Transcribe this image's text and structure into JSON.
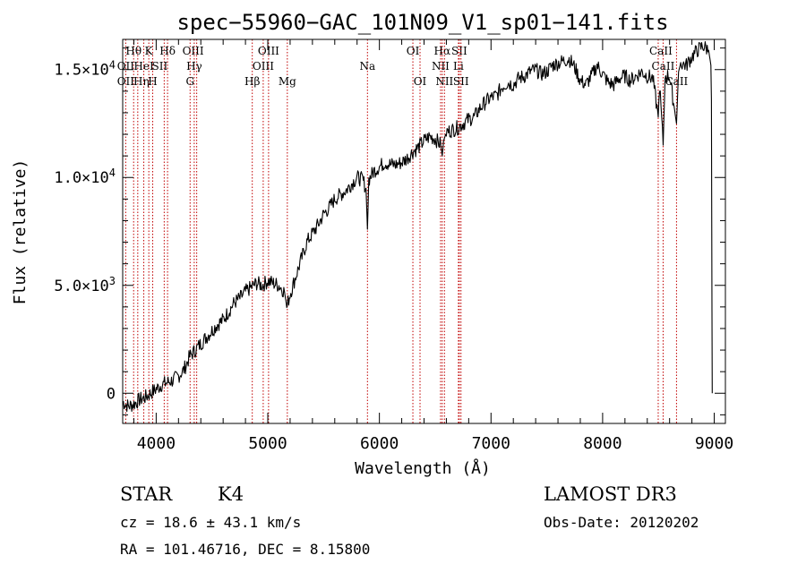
{
  "chart_data": {
    "type": "line",
    "title": "spec−55960−GAC_101N09_V1_sp01−141.fits",
    "xlabel": "Wavelength (Å)",
    "ylabel": "Flux (relative)",
    "xlim": [
      3700,
      9100
    ],
    "ylim": [
      -1400,
      16400
    ],
    "x_ticks": [
      {
        "value": 4000,
        "label": "4000"
      },
      {
        "value": 5000,
        "label": "5000"
      },
      {
        "value": 6000,
        "label": "6000"
      },
      {
        "value": 7000,
        "label": "7000"
      },
      {
        "value": 8000,
        "label": "8000"
      },
      {
        "value": 9000,
        "label": "9000"
      }
    ],
    "y_ticks": [
      {
        "value": 0,
        "mant": "0",
        "exp": ""
      },
      {
        "value": 5000,
        "mant": "5.0×10",
        "exp": "3"
      },
      {
        "value": 10000,
        "mant": "1.0×10",
        "exp": "4"
      },
      {
        "value": 15000,
        "mant": "1.5×10",
        "exp": "4"
      }
    ],
    "series": [
      {
        "name": "flux",
        "x": [
          3700,
          3750,
          3800,
          3850,
          3900,
          3950,
          4000,
          4050,
          4100,
          4150,
          4200,
          4250,
          4300,
          4350,
          4400,
          4450,
          4500,
          4550,
          4600,
          4650,
          4700,
          4750,
          4800,
          4850,
          4900,
          4950,
          5000,
          5050,
          5100,
          5150,
          5170,
          5200,
          5250,
          5300,
          5350,
          5400,
          5450,
          5500,
          5550,
          5600,
          5650,
          5700,
          5750,
          5800,
          5850,
          5880,
          5893,
          5905,
          5950,
          6000,
          6050,
          6100,
          6150,
          6200,
          6250,
          6300,
          6350,
          6400,
          6450,
          6500,
          6550,
          6563,
          6575,
          6600,
          6650,
          6700,
          6750,
          6800,
          6850,
          6900,
          6950,
          7000,
          7050,
          7100,
          7150,
          7200,
          7250,
          7300,
          7350,
          7400,
          7450,
          7500,
          7550,
          7600,
          7650,
          7700,
          7750,
          7800,
          7850,
          7900,
          7950,
          8000,
          8050,
          8100,
          8150,
          8200,
          8250,
          8300,
          8350,
          8400,
          8450,
          8498,
          8510,
          8542,
          8560,
          8600,
          8640,
          8662,
          8680,
          8700,
          8750,
          8800,
          8850,
          8900,
          8950,
          8970,
          8975,
          8980,
          8982
        ],
        "y": [
          -400,
          -600,
          -500,
          -300,
          -200,
          0,
          200,
          400,
          500,
          600,
          800,
          1100,
          1700,
          2000,
          2300,
          2600,
          2900,
          3200,
          3400,
          3800,
          4200,
          4400,
          4700,
          4900,
          5100,
          5000,
          5200,
          5100,
          5000,
          4700,
          4000,
          4600,
          5400,
          6200,
          7000,
          7400,
          7800,
          8300,
          8600,
          9000,
          9200,
          9400,
          9700,
          10000,
          9900,
          9500,
          7600,
          9900,
          10300,
          10500,
          10700,
          10600,
          10600,
          10700,
          10900,
          11200,
          11400,
          11700,
          11900,
          11800,
          11500,
          11000,
          11700,
          12100,
          12200,
          12300,
          12500,
          12700,
          12800,
          13200,
          13500,
          13700,
          13800,
          14200,
          14400,
          14300,
          14600,
          14700,
          14900,
          15000,
          14800,
          14900,
          15200,
          15300,
          15400,
          15500,
          15100,
          14500,
          14300,
          14700,
          15200,
          14800,
          14400,
          14300,
          14600,
          14700,
          14500,
          14700,
          14900,
          14700,
          14600,
          12800,
          14300,
          11500,
          14700,
          14700,
          13300,
          12500,
          14900,
          15300,
          15200,
          15600,
          15900,
          16100,
          15900,
          15200,
          13600,
          3800,
          0
        ]
      }
    ],
    "line_markers": [
      {
        "label": "Hθ",
        "wl": 3798,
        "row": 0,
        "dx": 0
      },
      {
        "label": "OII",
        "wl": 3727,
        "row": 1,
        "dx": 0
      },
      {
        "label": "OII",
        "wl": 3727,
        "row": 2,
        "dx": 0
      },
      {
        "label": "Hη",
        "wl": 3835,
        "row": 2,
        "dx": 4
      },
      {
        "label": "HeI",
        "wl": 3889,
        "row": 1,
        "dx": 0
      },
      {
        "label": "K",
        "wl": 3934,
        "row": 0,
        "dx": 0
      },
      {
        "label": "H",
        "wl": 3969,
        "row": 2,
        "dx": 0
      },
      {
        "label": "SII",
        "wl": 4072,
        "row": 1,
        "dx": -5
      },
      {
        "label": "Hδ",
        "wl": 4102,
        "row": 0,
        "dx": 0
      },
      {
        "label": "OIII",
        "wl": 4363,
        "row": 0,
        "dx": -4
      },
      {
        "label": "Hγ",
        "wl": 4341,
        "row": 1,
        "dx": 0
      },
      {
        "label": "G",
        "wl": 4304,
        "row": 2,
        "dx": 0
      },
      {
        "label": "Hβ",
        "wl": 4861,
        "row": 2,
        "dx": 0
      },
      {
        "label": "OIII",
        "wl": 4959,
        "row": 1,
        "dx": 0
      },
      {
        "label": "OIII",
        "wl": 5007,
        "row": 0,
        "dx": 0
      },
      {
        "label": "Mg",
        "wl": 5175,
        "row": 2,
        "dx": 0
      },
      {
        "label": "Na",
        "wl": 5893,
        "row": 1,
        "dx": 0
      },
      {
        "label": "OI",
        "wl": 6300,
        "row": 0,
        "dx": 0
      },
      {
        "label": "OI",
        "wl": 6364,
        "row": 2,
        "dx": 0
      },
      {
        "label": "NII",
        "wl": 6548,
        "row": 1,
        "dx": 0
      },
      {
        "label": "Hα",
        "wl": 6563,
        "row": 0,
        "dx": 0
      },
      {
        "label": "NII",
        "wl": 6583,
        "row": 2,
        "dx": 0
      },
      {
        "label": "SII",
        "wl": 6716,
        "row": 0,
        "dx": 0
      },
      {
        "label": "Li",
        "wl": 6708,
        "row": 1,
        "dx": 0
      },
      {
        "label": "SII",
        "wl": 6731,
        "row": 2,
        "dx": 0
      },
      {
        "label": "CaII",
        "wl": 8498,
        "row": 0,
        "dx": 3
      },
      {
        "label": "CaII",
        "wl": 8542,
        "row": 1,
        "dx": 0
      },
      {
        "label": "CaII",
        "wl": 8662,
        "row": 2,
        "dx": 0
      }
    ],
    "marker_color": "#c00000"
  },
  "info": {
    "object_class": "STAR",
    "subclass": "K4",
    "survey": "LAMOST DR3",
    "cz": "cz = 18.6 ± 43.1 km/s",
    "obs_date": "Obs-Date: 20120202",
    "radec": "RA = 101.46716, DEC =   8.15800"
  }
}
